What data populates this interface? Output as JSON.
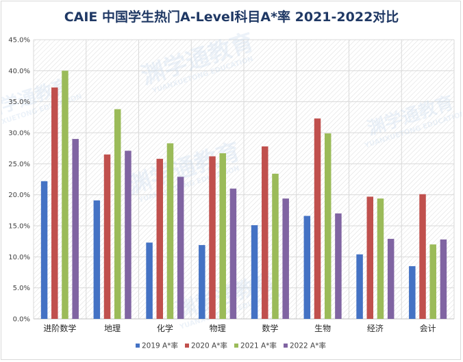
{
  "chart_data": {
    "type": "bar",
    "title": "CAIE 中国学生热门A-Level科目A*率 2021-2022对比",
    "categories": [
      "进阶数学",
      "地理",
      "化学",
      "物理",
      "数学",
      "生物",
      "经济",
      "会计"
    ],
    "series": [
      {
        "name": "2019 A*率",
        "color": "#4472c4",
        "values": [
          22.2,
          19.1,
          12.3,
          11.9,
          15.1,
          16.6,
          10.4,
          8.5
        ]
      },
      {
        "name": "2020 A*率",
        "color": "#c0504d",
        "values": [
          37.3,
          26.5,
          25.8,
          26.2,
          27.8,
          32.3,
          19.7,
          20.1
        ]
      },
      {
        "name": "2021 A*率",
        "color": "#9bbb59",
        "values": [
          40.0,
          33.8,
          28.3,
          26.7,
          23.4,
          29.9,
          19.4,
          12.0
        ]
      },
      {
        "name": "2022 A*率",
        "color": "#8064a2",
        "values": [
          29.0,
          27.1,
          22.9,
          21.0,
          19.4,
          17.0,
          12.9,
          12.8
        ]
      }
    ],
    "yticks": [
      "0.0%",
      "5.0%",
      "10.0%",
      "15.0%",
      "20.0%",
      "25.0%",
      "30.0%",
      "35.0%",
      "40.0%",
      "45.0%"
    ],
    "ylim": [
      0,
      45
    ],
    "grid": true,
    "legend_position": "bottom"
  },
  "watermark": {
    "cn": "渊学通教育",
    "en": "YUANXUETONG EDUCATION"
  }
}
